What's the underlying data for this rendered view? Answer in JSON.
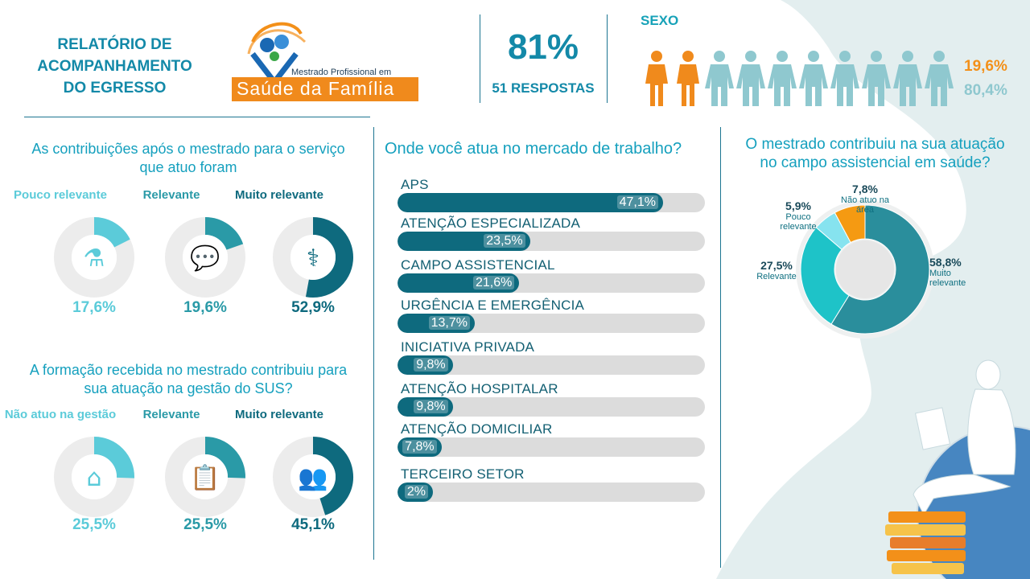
{
  "header": {
    "title_lines": [
      "RELATÓRIO DE",
      "ACOMPANHAMENTO",
      "DO EGRESSO"
    ],
    "logo_text_small": "Mestrado Profissional em",
    "logo_text_big": "Saúde da Família",
    "response_rate": "81%",
    "response_count": "51 RESPOSTAS"
  },
  "sexo": {
    "label": "SEXO",
    "female_pct": "19,6%",
    "male_pct": "80,4%",
    "female_icons": 2,
    "male_icons": 8,
    "colors": {
      "female": "#f08a1c",
      "male": "#8fc8cf"
    }
  },
  "contrib_servico": {
    "title_lines": [
      "As contribuições após o mestrado para o serviço",
      "que atuo foram"
    ],
    "items": [
      {
        "label": "Pouco relevante",
        "pct_text": "17,6%",
        "value": 17.6,
        "color": "#5bcbd9",
        "icon": "mortar-pestle-icon"
      },
      {
        "label": "Relevante",
        "pct_text": "19,6%",
        "value": 19.6,
        "color": "#2a9aa7",
        "icon": "chat-bubbles-icon"
      },
      {
        "label": "Muito relevante",
        "pct_text": "52,9%",
        "value": 52.9,
        "color": "#0e6a7e",
        "icon": "stethoscope-icon"
      }
    ]
  },
  "gestao_sus": {
    "title_lines": [
      "A formação recebida no mestrado contribuiu para",
      "sua atuação na gestão do SUS?"
    ],
    "items": [
      {
        "label": "Não atuo na gestão",
        "pct_text": "25,5%",
        "value": 25.5,
        "color": "#5bcbd9",
        "icon": "house-icon"
      },
      {
        "label": "Relevante",
        "pct_text": "25,5%",
        "value": 25.5,
        "color": "#2a9aa7",
        "icon": "clipboard-icon"
      },
      {
        "label": "Muito relevante",
        "pct_text": "45,1%",
        "value": 45.1,
        "color": "#0e6a7e",
        "icon": "team-icon"
      }
    ]
  },
  "mercado": {
    "title": "Onde você atua no mercado de trabalho?"
  },
  "assistencial": {
    "title_lines": [
      "O mestrado contribuiu na sua atuação",
      "no campo assistencial em saúde?"
    ]
  },
  "chart_data": [
    {
      "type": "bar",
      "orientation": "horizontal",
      "title": "Onde você atua no mercado de trabalho?",
      "categories": [
        "APS",
        "ATENÇÃO ESPECIALIZADA",
        "CAMPO ASSISTENCIAL",
        "URGÊNCIA E EMERGÊNCIA",
        "INICIATIVA PRIVADA",
        "ATENÇÃO HOSPITALAR",
        "ATENÇÃO DOMICILIAR",
        "TERCEIRO SETOR"
      ],
      "values": [
        47.1,
        23.5,
        21.6,
        13.7,
        9.8,
        9.8,
        7.8,
        2
      ],
      "labels": [
        "47,1%",
        "23,5%",
        "21,6%",
        "13,7%",
        "9,8%",
        "9,8%",
        "7,8%",
        "2%"
      ],
      "max": 47.1
    },
    {
      "type": "pie",
      "title": "O mestrado contribuiu na sua atuação no campo assistencial em saúde?",
      "slices": [
        {
          "name": "Muito relevante",
          "value": 58.8,
          "pct_text": "58,8%",
          "color": "#2a8e9c"
        },
        {
          "name": "Relevante",
          "value": 27.5,
          "pct_text": "27,5%",
          "color": "#1ec3c8"
        },
        {
          "name": "Pouco relevante",
          "value": 5.9,
          "pct_text": "5,9%",
          "color": "#86e3ef"
        },
        {
          "name": "Não atuo na área",
          "value": 7.8,
          "pct_text": "7,8%",
          "color": "#f59a12"
        }
      ]
    }
  ]
}
